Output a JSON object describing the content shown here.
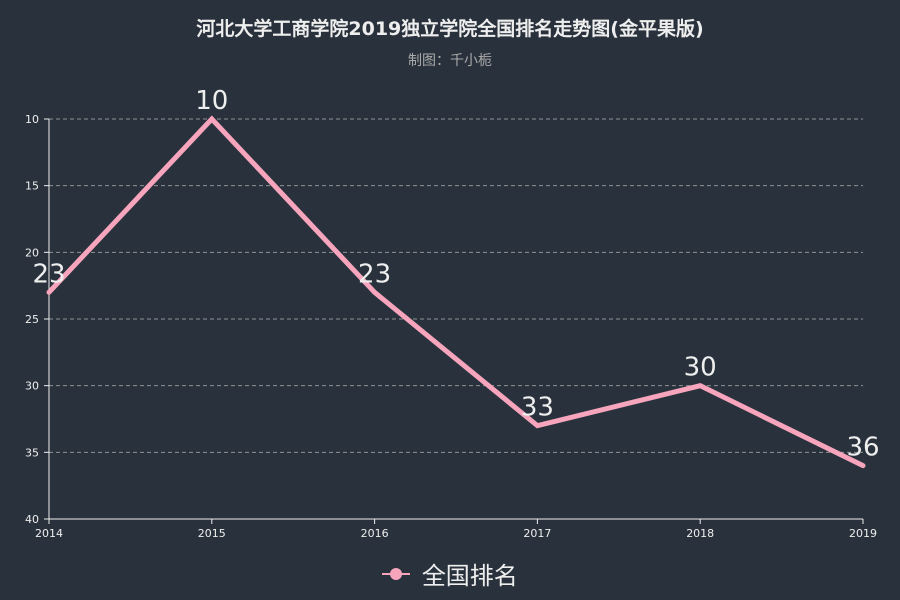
{
  "chart_data": {
    "type": "line",
    "title": "河北大学工商学院2019独立学院全国排名走势图(金平果版)",
    "subtitle": "制图：千小栀",
    "categories": [
      "2014",
      "2015",
      "2016",
      "2017",
      "2018",
      "2019"
    ],
    "series": [
      {
        "name": "全国排名",
        "values": [
          23,
          10,
          23,
          33,
          30,
          36
        ],
        "color": "#f7a4bd"
      }
    ],
    "ylim": [
      10,
      40
    ],
    "y_inverted": true,
    "y_ticks": [
      10,
      15,
      20,
      25,
      30,
      35,
      40
    ],
    "grid": true,
    "legend_position": "bottom-center",
    "xlabel": "",
    "ylabel": ""
  },
  "colors": {
    "background": "#29323c",
    "text": "#eeeeee",
    "subtitle": "#aaaaaa",
    "grid": "#aaaaaa"
  }
}
